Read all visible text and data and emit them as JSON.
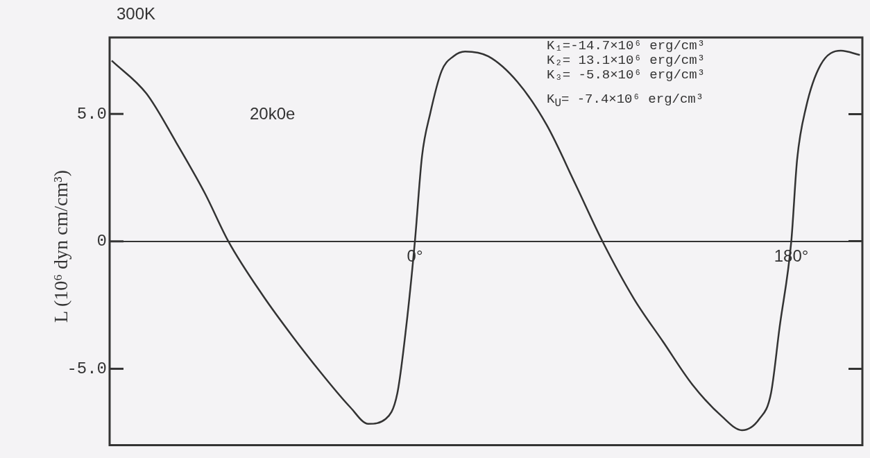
{
  "chart_data": {
    "type": "line",
    "title": "300K",
    "ylabel": "L  (10⁶ dyn cm/cm³)",
    "annotations": [
      "20k0e",
      "K₁=-14.7×10⁶ erg/cm³",
      "K₂= 13.1×10⁶ erg/cm³",
      "K₃= -5.8×10⁶ erg/cm³",
      "K$_{U}$= -7.4×10⁶ erg/cm³"
    ],
    "x": [
      -145,
      -128.4,
      -114.3,
      -100.4,
      -89.2,
      -72.5,
      -58.6,
      -44.7,
      -30.8,
      -22.3,
      -14,
      -8.4,
      -4.2,
      0,
      3.4,
      7.3,
      12.8,
      18.4,
      24,
      35.1,
      49.1,
      63,
      76.9,
      89.7,
      104.8,
      118.7,
      132.7,
      146.6,
      156.4,
      164.7,
      170.3,
      174.4,
      180,
      182.8,
      187,
      194,
      203.7,
      212.8
    ],
    "series": [
      {
        "color": "#333333",
        "values": [
          7.09,
          5.8,
          3.9,
          1.88,
          0,
          -2.15,
          -3.72,
          -5.18,
          -6.52,
          -7.16,
          -6.97,
          -5.96,
          -3.38,
          0,
          3.34,
          5.01,
          6.69,
          7.26,
          7.45,
          7.26,
          6.25,
          4.57,
          2.22,
          0,
          -2.26,
          -3.94,
          -5.62,
          -6.85,
          -7.41,
          -6.97,
          -5.96,
          -3.38,
          0,
          3.22,
          5.24,
          6.92,
          7.48,
          7.31
        ]
      }
    ],
    "xlim": [
      -146,
      214
    ],
    "xticks": [
      {
        "value": 0,
        "label": "0°"
      },
      {
        "value": 180,
        "label": "180°"
      }
    ],
    "ylim": [
      -8,
      8
    ],
    "yticks": [
      {
        "value": 5,
        "label": "5.0"
      },
      0,
      {
        "value": -5,
        "label": "-5.0"
      }
    ],
    "marker": "none"
  }
}
